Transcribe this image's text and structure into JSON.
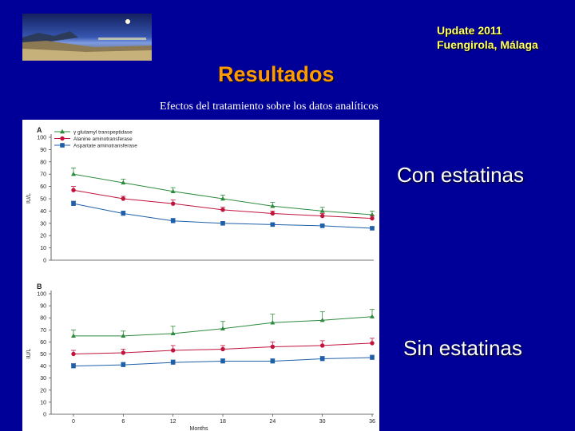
{
  "header": {
    "update_line1": "Update 2011",
    "update_line2": "Fuengirola, Málaga",
    "title": "Resultados",
    "subtitle": "Efectos del tratamiento sobre los datos analíticos"
  },
  "side_labels": {
    "top": "Con estatinas",
    "bottom": "Sin estatinas"
  },
  "colors": {
    "background": "#000099",
    "title": "#ff9900",
    "update_text": "#ffff66",
    "ggt": "#2e8b3e",
    "alt": "#c0143c",
    "ast": "#1f5fa8"
  },
  "chart_data": [
    {
      "type": "line",
      "panel_label": "A",
      "ylabel": "IU/L",
      "xlabel": "",
      "x": [
        0,
        6,
        12,
        18,
        24,
        30,
        36
      ],
      "ylim": [
        0,
        100
      ],
      "yticks": [
        0,
        10,
        20,
        30,
        40,
        50,
        60,
        70,
        80,
        90,
        100
      ],
      "series": [
        {
          "name": "γ glutamyl transpeptidase",
          "color": "#2e8b3e",
          "marker": "triangle",
          "values": [
            70,
            63,
            56,
            50,
            44,
            40,
            37
          ],
          "err": [
            5,
            3,
            3,
            3,
            3,
            3,
            3
          ]
        },
        {
          "name": "Alanine aminotransferase",
          "color": "#c0143c",
          "marker": "circle",
          "values": [
            57,
            50,
            46,
            41,
            38,
            36,
            34
          ],
          "err": [
            3,
            2,
            3,
            2,
            2,
            2,
            2
          ]
        },
        {
          "name": "Aspartate aminotransferase",
          "color": "#1f5fa8",
          "marker": "square",
          "values": [
            46,
            38,
            32,
            30,
            29,
            28,
            26
          ],
          "err": [
            2,
            2,
            2,
            1,
            1,
            1,
            1
          ]
        }
      ]
    },
    {
      "type": "line",
      "panel_label": "B",
      "ylabel": "IU/L",
      "xlabel": "Months",
      "x": [
        0,
        6,
        12,
        18,
        24,
        30,
        36
      ],
      "xticks": [
        "0",
        "6",
        "12",
        "18",
        "24",
        "30",
        "36"
      ],
      "ylim": [
        0,
        100
      ],
      "yticks": [
        0,
        10,
        20,
        30,
        40,
        50,
        60,
        70,
        80,
        90,
        100
      ],
      "series": [
        {
          "name": "γ glutamyl transpeptidase",
          "color": "#2e8b3e",
          "marker": "triangle",
          "values": [
            65,
            65,
            67,
            71,
            76,
            78,
            81
          ],
          "err": [
            5,
            4,
            6,
            6,
            7,
            7,
            6
          ]
        },
        {
          "name": "Alanine aminotransferase",
          "color": "#c0143c",
          "marker": "circle",
          "values": [
            50,
            51,
            53,
            54,
            56,
            57,
            59
          ],
          "err": [
            3,
            3,
            4,
            3,
            4,
            4,
            4
          ]
        },
        {
          "name": "Aspartate aminotransferase",
          "color": "#1f5fa8",
          "marker": "square",
          "values": [
            40,
            41,
            43,
            44,
            44,
            46,
            47
          ],
          "err": [
            2,
            2,
            2,
            2,
            2,
            2,
            2
          ]
        }
      ]
    }
  ]
}
